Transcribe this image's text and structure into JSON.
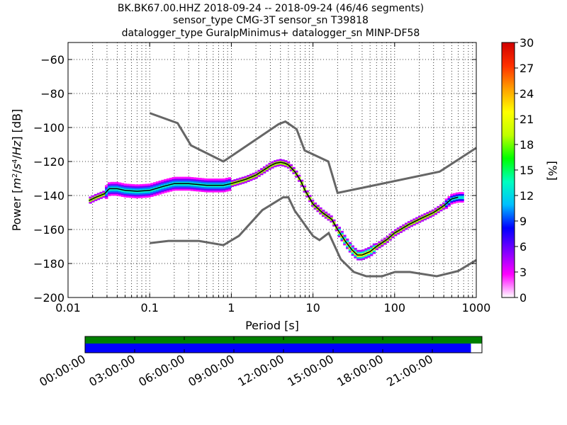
{
  "titles": [
    "BK.BK67.00.HHZ   2018-09-24 -- 2018-09-24  (46/46 segments)",
    "sensor_type CMG-3T sensor_sn T39818",
    "datalogger_type GuralpMinimus+ datalogger_sn MINP-DF58"
  ],
  "chart_data": {
    "type": "heatmap",
    "subtype": "probabilistic-power-spectral-density",
    "xlabel": "Period [s]",
    "ylabel": "Power [$m^2/s^4/Hz$] [dB]",
    "xscale": "log",
    "xlim": [
      0.01,
      1000
    ],
    "ylim": [
      -200,
      -50
    ],
    "xticks": [
      0.01,
      0.1,
      1,
      10,
      100,
      1000
    ],
    "xtick_labels": [
      "0.01",
      "0.1",
      "1",
      "10",
      "100",
      "1000"
    ],
    "yticks": [
      -200,
      -180,
      -160,
      -140,
      -120,
      -100,
      -80,
      -60
    ],
    "ytick_labels": [
      "−200",
      "−180",
      "−160",
      "−140",
      "−120",
      "−100",
      "−80",
      "−60"
    ],
    "grid": "dotted, x minor and major",
    "colorbar": {
      "label": "[%]",
      "min": 0,
      "max": 30,
      "ticks": [
        0,
        3,
        6,
        9,
        12,
        15,
        18,
        21,
        24,
        27,
        30
      ],
      "colors": [
        "#ffffff",
        "#ff00ff",
        "#7f00ff",
        "#0000ff",
        "#00bfff",
        "#00ffbf",
        "#00ff00",
        "#bfff00",
        "#ffff00",
        "#ffa000",
        "#ff3000",
        "#d00000"
      ]
    },
    "new_high_noise_model": {
      "x": [
        0.1,
        0.22,
        0.32,
        0.8,
        3.8,
        4.6,
        6.3,
        7.9,
        15.4,
        20,
        354.8,
        1000
      ],
      "y": [
        -91.5,
        -97.4,
        -110.5,
        -120.0,
        -98.0,
        -96.5,
        -101.0,
        -113.5,
        -120.0,
        -138.5,
        -126.0,
        -112.0
      ]
    },
    "new_low_noise_model": {
      "x": [
        0.1,
        0.17,
        0.4,
        0.8,
        1.24,
        2.4,
        4.3,
        5.0,
        6.0,
        10.0,
        12.0,
        15.6,
        21.9,
        31.6,
        45.0,
        70.0,
        101.0,
        154.0,
        328.0,
        600.0,
        1000.0
      ],
      "y": [
        -168.0,
        -166.7,
        -166.7,
        -169.2,
        -163.7,
        -148.6,
        -141.1,
        -141.1,
        -149.0,
        -163.8,
        -166.2,
        -162.1,
        -177.5,
        -185.0,
        -187.5,
        -187.5,
        -185.0,
        -185.0,
        -187.5,
        -184.4,
        -178.0
      ]
    },
    "psd_mode": {
      "x": [
        0.018,
        0.022,
        0.028,
        0.032,
        0.04,
        0.05,
        0.07,
        0.1,
        0.15,
        0.2,
        0.3,
        0.5,
        0.8,
        1.0,
        1.5,
        2.0,
        2.5,
        3.0,
        3.5,
        4.0,
        4.5,
        5.0,
        6.0,
        7.0,
        8.0,
        10.0,
        13.0,
        17.0,
        20.0,
        25.0,
        30.0,
        35.0,
        40.0,
        50.0,
        60.0,
        80.0,
        100.0,
        150.0,
        200.0,
        300.0,
        400.0,
        500.0,
        600.0
      ],
      "y": [
        -143.0,
        -141.0,
        -139.0,
        -136.0,
        -136.0,
        -137.0,
        -137.5,
        -137.0,
        -134.5,
        -133.0,
        -133.0,
        -134.0,
        -134.0,
        -133.0,
        -130.5,
        -128.0,
        -125.0,
        -122.5,
        -121.0,
        -120.5,
        -121.0,
        -122.0,
        -126.0,
        -131.0,
        -137.0,
        -145.0,
        -150.0,
        -154.0,
        -160.0,
        -167.0,
        -172.0,
        -175.0,
        -175.0,
        -173.0,
        -170.0,
        -166.0,
        -162.0,
        -157.0,
        -154.0,
        -150.0,
        -146.0,
        -142.0,
        -141.0
      ]
    },
    "occupancy": {
      "segments": [
        {
          "start": "00:00:00",
          "end": "23:20:00"
        }
      ],
      "x_tick_labels": [
        "00:00:00",
        "03:00:00",
        "06:00:00",
        "09:00:00",
        "12:00:00",
        "15:00:00",
        "18:00:00",
        "21:00:00"
      ],
      "x_tick_hours": [
        0,
        3,
        6,
        9,
        12,
        15,
        18,
        21
      ],
      "range_hours": [
        0,
        24
      ],
      "full_day_color": "#008000",
      "segments_color": "#0000ff"
    }
  }
}
